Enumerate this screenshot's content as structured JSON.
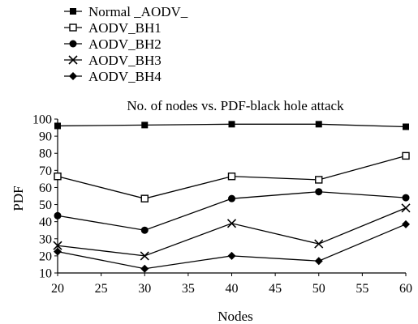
{
  "chart_data": {
    "type": "line",
    "title": "No. of nodes vs. PDF-black hole attack",
    "xlabel": "Nodes",
    "ylabel": "PDF",
    "x": [
      20,
      30,
      40,
      50,
      60
    ],
    "xlim": [
      20,
      60
    ],
    "ylim": [
      10,
      100
    ],
    "x_ticks": [
      "20",
      "25",
      "30",
      "35",
      "40",
      "45",
      "50",
      "55",
      "60"
    ],
    "y_ticks": [
      "10",
      "20",
      "30",
      "40",
      "50",
      "60",
      "70",
      "80",
      "90",
      "100"
    ],
    "grid": false,
    "legend_position": "top-left",
    "series": [
      {
        "name": "Normal _AODV_",
        "marker": "filled-square",
        "values": [
          96,
          96.5,
          97,
          97,
          95.5
        ]
      },
      {
        "name": "AODV_BH1",
        "marker": "hollow-square",
        "values": [
          66.5,
          53.5,
          66.5,
          64.5,
          78.5
        ]
      },
      {
        "name": "AODV_BH2",
        "marker": "filled-circle",
        "values": [
          43.5,
          35,
          53.5,
          57.5,
          54
        ]
      },
      {
        "name": "AODV_BH3",
        "marker": "x",
        "values": [
          26,
          20,
          39,
          27,
          48
        ]
      },
      {
        "name": "AODV_BH4",
        "marker": "filled-diamond",
        "values": [
          22.5,
          12.5,
          20,
          17,
          38.5
        ]
      }
    ]
  }
}
